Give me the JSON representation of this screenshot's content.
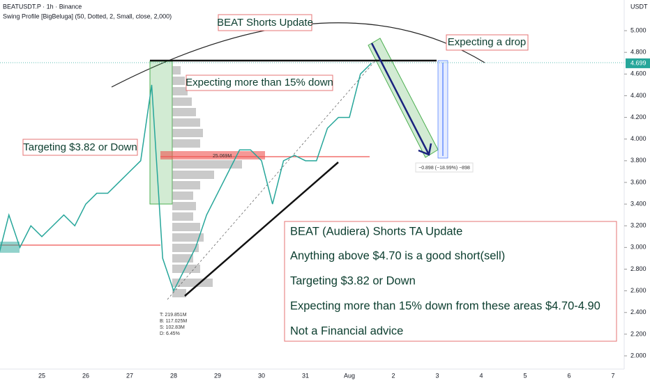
{
  "chart_data": {
    "type": "line",
    "header": {
      "symbol": "BEATUSDT.P · 1h · Binance",
      "indicator": "Swing Profile [BigBeluga] (50, Dotted, 2, Small, close, 2,000)",
      "currency": "USDT"
    },
    "title": "BEAT Shorts Update",
    "annotations": [
      "Expecting a drop",
      "Expecting more than 15% down",
      "Targeting $3.82 or Down"
    ],
    "note_lines": [
      "BEAT (Audiera) Shorts TA Update",
      "Anything above $4.70 is a good short(sell)",
      "Targeting $3.82 or Down",
      "Expecting more than 15% down from these areas $4.70-4.90",
      "Not a Financial advice"
    ],
    "profile_stats": [
      "T: 219.851M",
      "B: 117.025M",
      "S: 102.83M",
      "D: 6.45%"
    ],
    "profile_poc": "25.069M",
    "measure_label": "−0.898 (−18.99%) −898",
    "last_price": {
      "value": 4.699,
      "label": "4.699"
    },
    "categories": [
      null,
      null,
      null,
      null,
      "25",
      null,
      null,
      null,
      "26",
      null,
      null,
      null,
      "27",
      null,
      null,
      null,
      "28",
      null,
      null,
      null,
      "29",
      null,
      null,
      null,
      "30",
      null,
      null,
      null,
      "31",
      null,
      null,
      null,
      "Aug",
      null,
      null,
      null,
      "2",
      null,
      null,
      null,
      "3",
      null,
      null,
      null,
      "4",
      null,
      null,
      null,
      "5",
      null,
      null,
      null,
      "6",
      null,
      null,
      null,
      "7",
      null
    ],
    "series": [
      {
        "name": "BEATUSDT.P",
        "color": "#26a69a",
        "values": [
          2.9,
          3.3,
          3.0,
          3.2,
          3.1,
          3.2,
          3.3,
          3.2,
          3.4,
          3.5,
          3.5,
          3.6,
          3.7,
          3.8,
          4.5,
          2.9,
          2.6,
          2.8,
          3.0,
          3.3,
          3.5,
          3.7,
          3.9,
          3.9,
          3.8,
          3.4,
          3.8,
          3.85,
          3.8,
          3.8,
          4.1,
          4.2,
          4.2,
          4.6,
          4.7,
          null,
          null,
          null,
          null,
          null,
          null,
          null,
          null,
          null,
          null,
          null,
          null,
          null,
          null,
          null,
          null,
          null,
          null,
          null,
          null,
          null,
          null,
          null
        ]
      }
    ],
    "ylim": [
      1.878,
      5.283
    ],
    "yticks": [
      {
        "value": 5,
        "label": "5.000"
      },
      {
        "value": 4.8,
        "label": "4.800"
      },
      {
        "value": 4.6,
        "label": "4.600"
      },
      {
        "value": 4.4,
        "label": "4.400"
      },
      {
        "value": 4.2,
        "label": "4.200"
      },
      {
        "value": 4,
        "label": "4.000"
      },
      {
        "value": 3.8,
        "label": "3.800"
      },
      {
        "value": 3.6,
        "label": "3.600"
      },
      {
        "value": 3.4,
        "label": "3.400"
      },
      {
        "value": 3.2,
        "label": "3.200"
      },
      {
        "value": 3,
        "label": "3.000"
      },
      {
        "value": 2.8,
        "label": "2.800"
      },
      {
        "value": 2.6,
        "label": "2.600"
      },
      {
        "value": 2.4,
        "label": "2.400"
      },
      {
        "value": 2.2,
        "label": "2.200"
      },
      {
        "value": 2,
        "label": "2.000"
      }
    ],
    "grid": false
  }
}
